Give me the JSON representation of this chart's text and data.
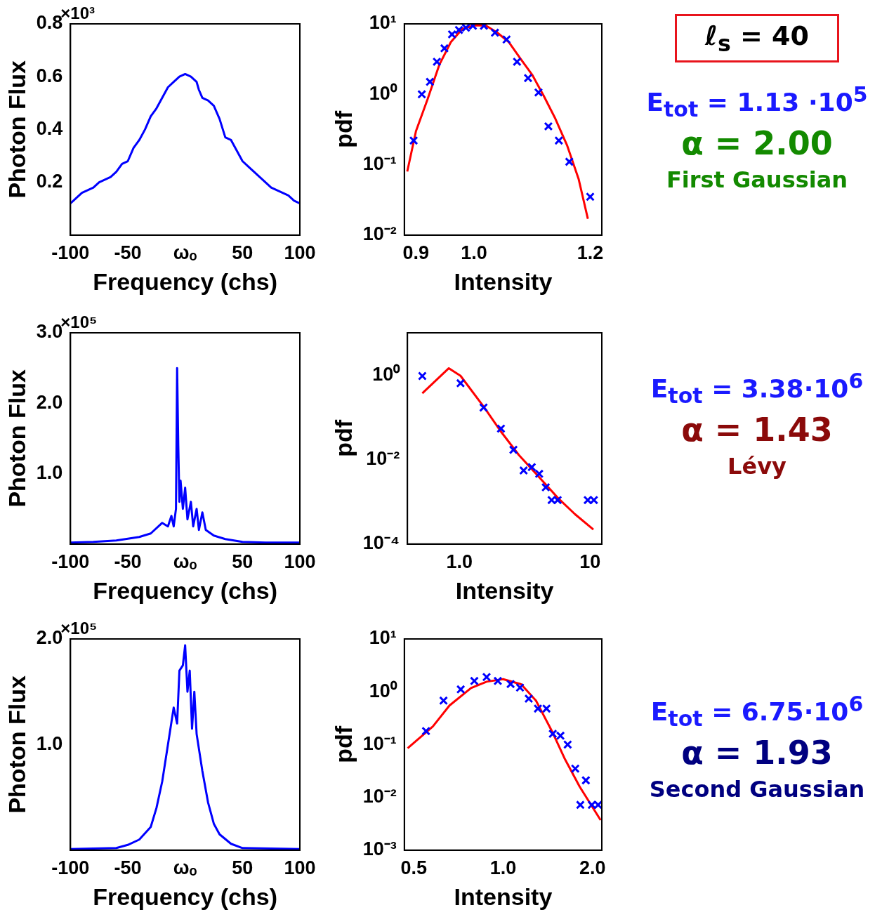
{
  "chart_data": [
    {
      "type": "line",
      "xlabel": "Frequency (chs)",
      "ylabel": "Photon Flux",
      "annotations": [
        "×10³"
      ],
      "color": "#0000ff",
      "x": [
        -100,
        -95,
        -90,
        -85,
        -80,
        -75,
        -70,
        -65,
        -60,
        -55,
        -50,
        -45,
        -40,
        -35,
        -30,
        -25,
        -20,
        -15,
        -10,
        -5,
        0,
        5,
        10,
        12,
        15,
        20,
        25,
        30,
        35,
        40,
        45,
        50,
        55,
        60,
        65,
        70,
        75,
        80,
        85,
        90,
        95,
        100
      ],
      "values": [
        0.12,
        0.14,
        0.16,
        0.17,
        0.18,
        0.2,
        0.21,
        0.22,
        0.24,
        0.27,
        0.28,
        0.33,
        0.36,
        0.4,
        0.45,
        0.48,
        0.52,
        0.56,
        0.58,
        0.6,
        0.61,
        0.6,
        0.58,
        0.55,
        0.52,
        0.51,
        0.49,
        0.44,
        0.37,
        0.36,
        0.32,
        0.28,
        0.26,
        0.24,
        0.22,
        0.2,
        0.18,
        0.17,
        0.16,
        0.15,
        0.13,
        0.12
      ],
      "xlim": [
        -100,
        100
      ],
      "xticks": [
        -100,
        -50,
        {
          "value": 0,
          "label": "ωₒ"
        },
        50,
        100
      ],
      "ylim": [
        0,
        0.8
      ],
      "yticks": [
        0.2,
        0.4,
        0.6,
        0.8
      ]
    },
    {
      "type": "scatter",
      "xlabel": "Intensity",
      "ylabel": "pdf",
      "log": "y",
      "series": [
        {
          "type": "scatter",
          "marker": "cross",
          "color": "#0000ff",
          "x": [
            0.896,
            0.91,
            0.924,
            0.936,
            0.949,
            0.962,
            0.974,
            0.986,
            0.998,
            1.017,
            1.036,
            1.056,
            1.074,
            1.093,
            1.111,
            1.128,
            1.146,
            1.164,
            1.2
          ],
          "values": [
            0.22,
            1.0,
            1.5,
            2.9,
            4.5,
            7.1,
            8.2,
            8.8,
            9.4,
            9.4,
            7.5,
            6.0,
            2.9,
            1.7,
            1.06,
            0.35,
            0.22,
            0.11,
            0.035
          ]
        },
        {
          "type": "line",
          "color": "#ff0000",
          "x": [
            0.885,
            0.9,
            0.92,
            0.94,
            0.96,
            0.98,
            1.0,
            1.02,
            1.04,
            1.06,
            1.08,
            1.1,
            1.12,
            1.14,
            1.16,
            1.18,
            1.196
          ],
          "values": [
            0.08,
            0.3,
            0.85,
            2.6,
            5.5,
            8.5,
            9.5,
            9.5,
            7.5,
            5.5,
            3.2,
            1.9,
            0.95,
            0.45,
            0.19,
            0.063,
            0.017
          ]
        }
      ],
      "xlim": [
        0.88,
        1.22
      ],
      "xticks": [
        0.9,
        {
          "value": 1,
          "label": "1.0"
        },
        1.2
      ],
      "ylim": [
        0.01,
        10
      ],
      "yticks": [
        {
          "value": 0.01,
          "label": "10⁻²"
        },
        {
          "value": 0.1,
          "label": "10⁻¹"
        },
        {
          "value": 1,
          "label": "10⁰"
        },
        {
          "value": 10,
          "label": "10¹"
        }
      ]
    },
    {
      "type": "other",
      "annotations": [
        "ℓ$_{s}$ = 40",
        "E$_{tot}$ = 1.13 ·10$^{5}$",
        "α = 2.00",
        "First Gaussian"
      ]
    },
    {
      "type": "line",
      "xlabel": "Frequency (chs)",
      "ylabel": "Photon Flux",
      "annotations": [
        "×10⁵"
      ],
      "color": "#0000ff",
      "x": [
        -100,
        -80,
        -60,
        -40,
        -30,
        -20,
        -15,
        -12,
        -10,
        -8,
        -7,
        -6,
        -5,
        -4,
        -2,
        0,
        2,
        5,
        7,
        10,
        12,
        15,
        18,
        25,
        35,
        50,
        70,
        100
      ],
      "values": [
        0.02,
        0.03,
        0.05,
        0.1,
        0.15,
        0.3,
        0.25,
        0.4,
        0.25,
        0.5,
        2.5,
        1.4,
        0.6,
        0.9,
        0.5,
        0.8,
        0.35,
        0.6,
        0.25,
        0.5,
        0.2,
        0.45,
        0.2,
        0.12,
        0.07,
        0.03,
        0.02,
        0.02
      ],
      "xlim": [
        -100,
        100
      ],
      "xticks": [
        -100,
        -50,
        {
          "value": 0,
          "label": "ωₒ"
        },
        50,
        100
      ],
      "ylim": [
        0,
        3
      ],
      "yticks": [
        {
          "value": 1,
          "label": "1.0"
        },
        {
          "value": 2,
          "label": "2.0"
        },
        {
          "value": 3,
          "label": "3.0"
        }
      ]
    },
    {
      "type": "scatter",
      "xlabel": "Intensity",
      "ylabel": "pdf",
      "log": "xy",
      "series": [
        {
          "type": "scatter",
          "marker": "cross",
          "color": "#0000ff",
          "x": [
            0.52,
            1.02,
            1.53,
            2.08,
            2.59,
            3.1,
            3.58,
            4.08,
            4.58,
            5.08,
            5.65,
            9.6,
            10.7
          ],
          "values": [
            0.95,
            0.64,
            0.17,
            0.054,
            0.017,
            0.0055,
            0.0066,
            0.0046,
            0.0022,
            0.0011,
            0.0011,
            0.0011,
            0.0011
          ]
        },
        {
          "type": "line",
          "color": "#ff0000",
          "x": [
            0.52,
            0.83,
            1.02,
            1.55,
            2.1,
            2.85,
            3.86,
            5.65,
            7.66,
            10.6
          ],
          "values": [
            0.37,
            1.45,
            0.96,
            0.17,
            0.044,
            0.0128,
            0.0046,
            0.00125,
            0.00051,
            0.00022
          ]
        }
      ],
      "xlim": [
        0.4,
        12.3
      ],
      "xticks": [
        {
          "value": 1,
          "label": "1.0"
        },
        10
      ],
      "ylim": [
        0.0001,
        10
      ],
      "yticks": [
        {
          "value": 0.0001,
          "label": "10⁻⁴"
        },
        {
          "value": 0.01,
          "label": "10⁻²"
        },
        {
          "value": 1,
          "label": "10⁰"
        }
      ]
    },
    {
      "type": "other",
      "annotations": [
        "E$_{tot}$ =  3.38·10$^{6}$",
        "α = 1.43",
        "Lévy"
      ]
    },
    {
      "type": "line",
      "xlabel": "Frequency (chs)",
      "ylabel": "Photon Flux",
      "annotations": [
        "×10⁵"
      ],
      "color": "#0000ff",
      "x": [
        -100,
        -60,
        -50,
        -40,
        -30,
        -25,
        -20,
        -15,
        -10,
        -7,
        -5,
        -2,
        0,
        2,
        4,
        6,
        8,
        10,
        15,
        20,
        25,
        30,
        40,
        50,
        100
      ],
      "values": [
        0.01,
        0.02,
        0.05,
        0.1,
        0.22,
        0.4,
        0.65,
        1.0,
        1.35,
        1.2,
        1.7,
        1.75,
        1.94,
        1.5,
        1.7,
        1.15,
        1.5,
        1.1,
        0.75,
        0.45,
        0.25,
        0.15,
        0.06,
        0.02,
        0.01
      ],
      "xlim": [
        -100,
        100
      ],
      "xticks": [
        -100,
        -50,
        {
          "value": 0,
          "label": "ωₒ"
        },
        50,
        100
      ],
      "ylim": [
        0,
        2
      ],
      "yticks": [
        {
          "value": 1,
          "label": "1.0"
        },
        {
          "value": 2,
          "label": "2.0"
        }
      ]
    },
    {
      "type": "scatter",
      "xlabel": "Intensity",
      "ylabel": "pdf",
      "log": "xy",
      "series": [
        {
          "type": "scatter",
          "marker": "cross",
          "color": "#0000ff",
          "x": [
            0.55,
            0.63,
            0.72,
            0.8,
            0.88,
            0.96,
            1.06,
            1.14,
            1.22,
            1.31,
            1.4,
            1.47,
            1.56,
            1.65,
            1.75,
            1.9,
            1.82,
            1.99,
            2.09
          ],
          "values": [
            0.18,
            0.68,
            1.11,
            1.6,
            1.9,
            1.6,
            1.4,
            1.2,
            0.74,
            0.48,
            0.48,
            0.16,
            0.147,
            0.1,
            0.035,
            0.021,
            0.0072,
            0.0072,
            0.0072
          ]
        },
        {
          "type": "line",
          "color": "#ff0000",
          "x": [
            0.477,
            0.58,
            0.66,
            0.78,
            0.88,
            1.0,
            1.15,
            1.29,
            1.46,
            1.61,
            1.81,
            2.13
          ],
          "values": [
            0.085,
            0.22,
            0.55,
            1.18,
            1.55,
            1.73,
            1.39,
            0.68,
            0.18,
            0.055,
            0.016,
            0.0037
          ]
        }
      ],
      "xlim": [
        0.465,
        2.15
      ],
      "xticks": [
        0.5,
        {
          "value": 1,
          "label": "1.0"
        },
        {
          "value": 2,
          "label": "2.0"
        }
      ],
      "ylim": [
        0.001,
        10
      ],
      "yticks": [
        {
          "value": 0.001,
          "label": "10⁻³"
        },
        {
          "value": 0.01,
          "label": "10⁻²"
        },
        {
          "value": 0.1,
          "label": "10⁻¹"
        },
        {
          "value": 1,
          "label": "10⁰"
        },
        {
          "value": 10,
          "label": "10¹"
        }
      ]
    },
    {
      "type": "other",
      "annotations": [
        "E$_{tot}$ =  6.75·10$^{6}$",
        "α = 1.93",
        "Second Gaussian"
      ]
    }
  ]
}
